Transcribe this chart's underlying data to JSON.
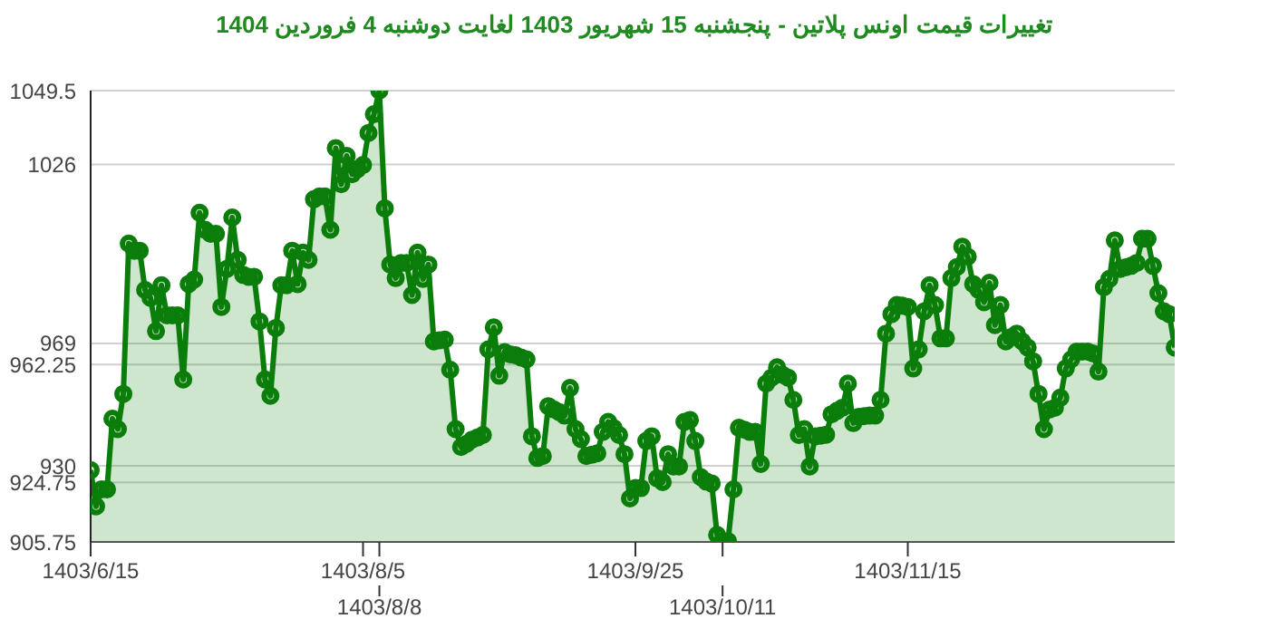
{
  "chart_data": {
    "type": "area",
    "title": "تغییرات قیمت اونس پلاتین - پنجشنبه  15 شهریور 1403 لغایت  دوشنبه  4 فروردین 1404",
    "categories": [
      "1403/6/15",
      null,
      null,
      null,
      null,
      null,
      null,
      null,
      null,
      null,
      null,
      null,
      null,
      null,
      null,
      null,
      null,
      null,
      null,
      null,
      null,
      null,
      null,
      null,
      null,
      null,
      null,
      null,
      null,
      null,
      null,
      null,
      null,
      null,
      null,
      null,
      null,
      null,
      null,
      null,
      null,
      null,
      null,
      null,
      null,
      null,
      null,
      null,
      null,
      null,
      "1403/8/5",
      null,
      null,
      "1403/8/8",
      null,
      null,
      null,
      null,
      null,
      null,
      null,
      null,
      null,
      null,
      null,
      null,
      null,
      null,
      null,
      null,
      null,
      null,
      null,
      null,
      null,
      null,
      null,
      null,
      null,
      null,
      null,
      null,
      null,
      null,
      null,
      null,
      null,
      null,
      null,
      null,
      null,
      null,
      null,
      null,
      null,
      null,
      null,
      null,
      null,
      null,
      "1403/9/25",
      null,
      null,
      null,
      null,
      null,
      null,
      null,
      null,
      null,
      null,
      null,
      null,
      null,
      null,
      null,
      "1403/10/11",
      null,
      null,
      null,
      null,
      null,
      null,
      null,
      null,
      null,
      null,
      null,
      null,
      null,
      null,
      null,
      null,
      null,
      null,
      null,
      null,
      null,
      null,
      null,
      null,
      null,
      null,
      null,
      null,
      null,
      null,
      null,
      null,
      null,
      "1403/11/15",
      null,
      null,
      null,
      null,
      null,
      null,
      null,
      null,
      null,
      null,
      null,
      null,
      null,
      null,
      null,
      null,
      null,
      null,
      null,
      null,
      null,
      null,
      null,
      null,
      null,
      null,
      null,
      null,
      null,
      null,
      null,
      null,
      null,
      null,
      null,
      null,
      null,
      null,
      null,
      null,
      null,
      null,
      null,
      null,
      null,
      null,
      null,
      null,
      null
    ],
    "values": [
      928.6,
      917.1,
      922.5,
      922.5,
      945,
      941.7,
      952.9,
      1000.8,
      998.5,
      998.5,
      986,
      983.5,
      972.9,
      987.5,
      977.9,
      977.9,
      977.9,
      957.5,
      987.9,
      989.3,
      1010.6,
      1005.2,
      1003.9,
      1003.9,
      980.6,
      992.7,
      1009.1,
      995.6,
      990.8,
      990.2,
      990.2,
      976,
      957.5,
      952.3,
      973.9,
      987.5,
      987.5,
      998.5,
      987.9,
      997.9,
      995.6,
      1014.9,
      1015.8,
      1015.8,
      1005.2,
      1031.2,
      1019.7,
      1028.7,
      1022.9,
      1024.5,
      1025.8,
      1036,
      1042,
      1049.5,
      1012,
      994.1,
      989.8,
      994.6,
      994.6,
      984.4,
      997.9,
      989.5,
      994.1,
      969.6,
      970,
      970.2,
      960.6,
      941.7,
      936,
      937,
      938.3,
      939,
      939.8,
      967.1,
      974.1,
      958.7,
      966.2,
      965.5,
      965.2,
      964.5,
      963.9,
      939.4,
      932.5,
      933.1,
      949,
      948,
      947.1,
      946,
      954.8,
      941.7,
      938.5,
      933.1,
      933.5,
      934,
      940.8,
      944,
      942,
      939.8,
      933.7,
      919.6,
      922.9,
      922.9,
      937.9,
      939.4,
      926,
      924.8,
      933.7,
      929.8,
      929.8,
      944,
      944.6,
      937.9,
      926.4,
      925,
      924.4,
      908,
      906,
      906,
      922.5,
      942.1,
      941.5,
      940.8,
      940.8,
      930.6,
      956.2,
      958.1,
      961.4,
      959,
      958.1,
      951,
      939.8,
      941.7,
      929.8,
      939.4,
      939.6,
      939.9,
      946.4,
      947.5,
      948.5,
      956.2,
      943.6,
      945.6,
      945.8,
      946,
      946,
      951,
      972.1,
      978.3,
      981.2,
      981,
      980.6,
      961,
      967.1,
      979.2,
      987.5,
      981.2,
      970.6,
      970.6,
      989.8,
      993.3,
      999.8,
      996.6,
      987.9,
      986,
      982.1,
      988.3,
      974.8,
      981.2,
      969.6,
      971,
      972.1,
      969.6,
      967.7,
      963.3,
      952.9,
      941.7,
      947.9,
      948.5,
      951.7,
      961,
      963.9,
      966.4,
      966.4,
      966.4,
      965.8,
      960,
      986.9,
      989.5,
      1001.8,
      992.7,
      993.2,
      993.7,
      994.6,
      1002.3,
      1002.3,
      993.7,
      985,
      979.2,
      978.3,
      967.7
    ],
    "color": "#0a7d0a",
    "ylim": [
      905.75,
      1049.5
    ],
    "yticks": [
      905.75,
      924.75,
      930,
      962.25,
      969,
      1026,
      1049.5
    ],
    "grid": "y",
    "marker": "circle"
  }
}
